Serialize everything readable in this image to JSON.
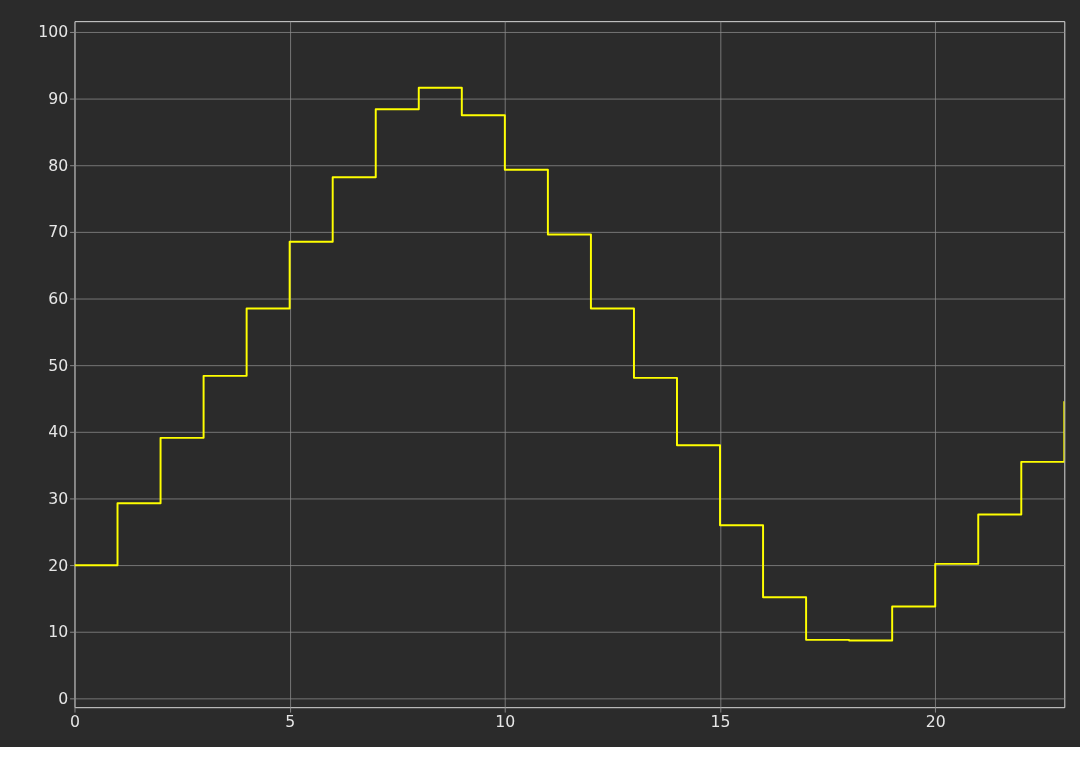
{
  "chart_data": {
    "type": "step",
    "x": [
      0,
      1,
      2,
      3,
      4,
      5,
      6,
      7,
      8,
      9,
      10,
      11,
      12,
      13,
      14,
      15,
      16,
      17,
      18,
      19,
      20,
      21,
      22,
      23
    ],
    "series": [
      {
        "color": "#ffff00",
        "values": [
          20,
          29.3,
          39.1,
          48.4,
          58.5,
          68.5,
          78.2,
          88.4,
          91.6,
          87.5,
          79.3,
          69.6,
          58.5,
          48.1,
          38.0,
          26.0,
          15.2,
          8.8,
          8.7,
          13.8,
          20.2,
          27.6,
          35.5,
          44.6
        ]
      }
    ],
    "xlim": [
      0,
      23
    ],
    "ylim": [
      -1.3,
      101.6
    ],
    "xticks": [
      0,
      5,
      10,
      15,
      20
    ],
    "yticks": [
      0,
      10,
      20,
      30,
      40,
      50,
      60,
      70,
      80,
      90,
      100
    ],
    "grid": true
  }
}
